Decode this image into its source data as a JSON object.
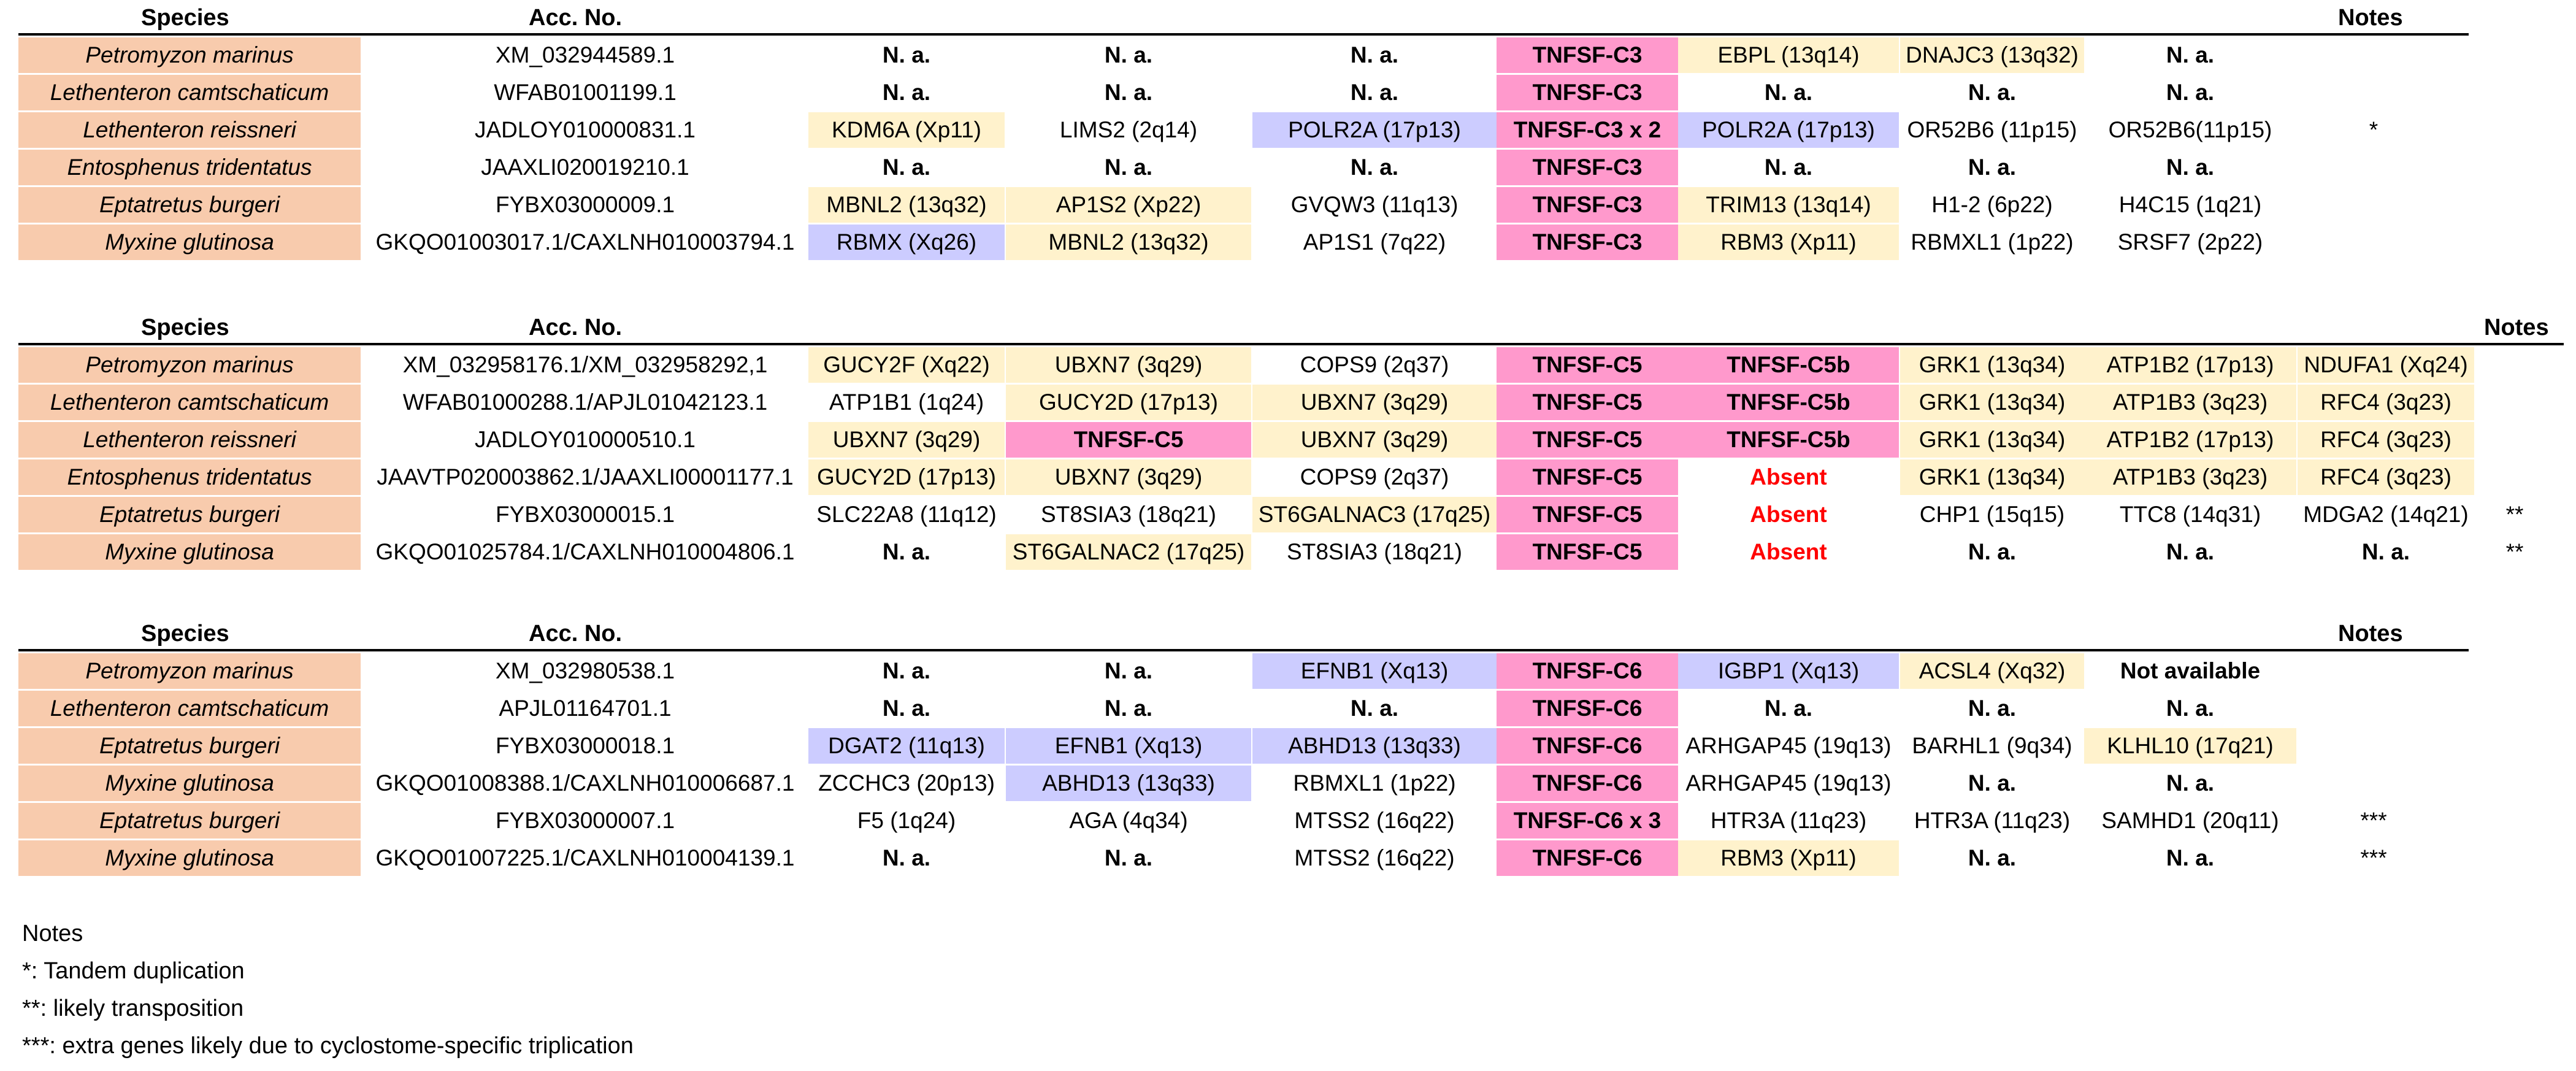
{
  "headers": {
    "species": "Species",
    "acc": "Acc. No.",
    "notes": "Notes"
  },
  "tables": [
    {
      "rows": [
        {
          "species": "Petromyzon marinus",
          "acc": "XM_032944589.1",
          "note": "",
          "cells": [
            {
              "t": "N. a.",
              "s": "bold"
            },
            {
              "t": "N. a.",
              "s": "bold"
            },
            {
              "t": "N. a.",
              "s": "bold"
            },
            {
              "t": "TNFSF-C3",
              "s": "pink"
            },
            {
              "t": "EBPL (13q14)",
              "s": "yellow"
            },
            {
              "t": "DNAJC3 (13q32)",
              "s": "yellow"
            },
            {
              "t": "N. a.",
              "s": "bold"
            }
          ]
        },
        {
          "species": "Lethenteron camtschaticum",
          "acc": "WFAB01001199.1",
          "note": "",
          "cells": [
            {
              "t": "N. a.",
              "s": "bold"
            },
            {
              "t": "N. a.",
              "s": "bold"
            },
            {
              "t": "N. a.",
              "s": "bold"
            },
            {
              "t": "TNFSF-C3",
              "s": "pink"
            },
            {
              "t": "N. a.",
              "s": "bold"
            },
            {
              "t": "N. a.",
              "s": "bold"
            },
            {
              "t": "N. a.",
              "s": "bold"
            }
          ]
        },
        {
          "species": "Lethenteron reissneri",
          "acc": "JADLOY010000831.1",
          "note": "*",
          "cells": [
            {
              "t": "KDM6A (Xp11)",
              "s": "yellow"
            },
            {
              "t": "LIMS2 (2q14)",
              "s": "none"
            },
            {
              "t": "POLR2A (17p13)",
              "s": "blue"
            },
            {
              "t": "TNFSF-C3 x 2",
              "s": "pink"
            },
            {
              "t": "POLR2A (17p13)",
              "s": "blue"
            },
            {
              "t": "OR52B6 (11p15)",
              "s": "none"
            },
            {
              "t": "OR52B6(11p15)",
              "s": "none"
            }
          ]
        },
        {
          "species": "Entosphenus tridentatus",
          "acc": "JAAXLI020019210.1",
          "note": "",
          "cells": [
            {
              "t": "N. a.",
              "s": "bold"
            },
            {
              "t": "N. a.",
              "s": "bold"
            },
            {
              "t": "N. a.",
              "s": "bold"
            },
            {
              "t": "TNFSF-C3",
              "s": "pink"
            },
            {
              "t": "N. a.",
              "s": "bold"
            },
            {
              "t": "N. a.",
              "s": "bold"
            },
            {
              "t": "N. a.",
              "s": "bold"
            }
          ]
        },
        {
          "species": "Eptatretus burgeri",
          "acc": "FYBX03000009.1",
          "note": "",
          "cells": [
            {
              "t": "MBNL2 (13q32)",
              "s": "yellow"
            },
            {
              "t": "AP1S2 (Xp22)",
              "s": "yellow"
            },
            {
              "t": "GVQW3 (11q13)",
              "s": "none"
            },
            {
              "t": "TNFSF-C3",
              "s": "pink"
            },
            {
              "t": "TRIM13 (13q14)",
              "s": "yellow"
            },
            {
              "t": "H1-2 (6p22)",
              "s": "none"
            },
            {
              "t": "H4C15 (1q21)",
              "s": "none"
            }
          ]
        },
        {
          "species": "Myxine glutinosa",
          "acc": "GKQO01003017.1/CAXLNH010003794.1",
          "note": "",
          "cells": [
            {
              "t": "RBMX (Xq26)",
              "s": "blue"
            },
            {
              "t": "MBNL2 (13q32)",
              "s": "yellow"
            },
            {
              "t": "AP1S1 (7q22)",
              "s": "none"
            },
            {
              "t": "TNFSF-C3",
              "s": "pink"
            },
            {
              "t": "RBM3 (Xp11)",
              "s": "yellow"
            },
            {
              "t": "RBMXL1 (1p22)",
              "s": "none"
            },
            {
              "t": "SRSF7 (2p22)",
              "s": "none"
            }
          ]
        }
      ]
    },
    {
      "rows": [
        {
          "species": "Petromyzon marinus",
          "acc": "XM_032958176.1/XM_032958292,1",
          "note": "",
          "cells": [
            {
              "t": "GUCY2F (Xq22)",
              "s": "yellow"
            },
            {
              "t": "UBXN7 (3q29)",
              "s": "yellow"
            },
            {
              "t": "COPS9 (2q37)",
              "s": "none"
            },
            {
              "t": "TNFSF-C5",
              "s": "pink"
            },
            {
              "t": "TNFSF-C5b",
              "s": "pink"
            },
            {
              "t": "GRK1 (13q34)",
              "s": "yellow"
            },
            {
              "t": "ATP1B2 (17p13)",
              "s": "yellow"
            },
            {
              "t": "NDUFA1 (Xq24)",
              "s": "yellow"
            }
          ]
        },
        {
          "species": "Lethenteron camtschaticum",
          "acc": "WFAB01000288.1/APJL01042123.1",
          "note": "",
          "cells": [
            {
              "t": "ATP1B1 (1q24)",
              "s": "none"
            },
            {
              "t": "GUCY2D (17p13)",
              "s": "yellow"
            },
            {
              "t": "UBXN7 (3q29)",
              "s": "yellow"
            },
            {
              "t": "TNFSF-C5",
              "s": "pink"
            },
            {
              "t": "TNFSF-C5b",
              "s": "pink"
            },
            {
              "t": "GRK1 (13q34)",
              "s": "yellow"
            },
            {
              "t": "ATP1B3 (3q23)",
              "s": "yellow"
            },
            {
              "t": "RFC4 (3q23)",
              "s": "yellow"
            }
          ]
        },
        {
          "species": "Lethenteron reissneri",
          "acc": "JADLOY010000510.1",
          "note": "",
          "cells": [
            {
              "t": "UBXN7 (3q29)",
              "s": "yellow"
            },
            {
              "t": "TNFSF-C5",
              "s": "pink"
            },
            {
              "t": "UBXN7 (3q29)",
              "s": "yellow"
            },
            {
              "t": "TNFSF-C5",
              "s": "pink"
            },
            {
              "t": "TNFSF-C5b",
              "s": "pink"
            },
            {
              "t": "GRK1 (13q34)",
              "s": "yellow"
            },
            {
              "t": "ATP1B2 (17p13)",
              "s": "yellow"
            },
            {
              "t": "RFC4 (3q23)",
              "s": "yellow"
            }
          ]
        },
        {
          "species": "Entosphenus tridentatus",
          "acc": "JAAVTP020003862.1/JAAXLI00001177.1",
          "note": "",
          "cells": [
            {
              "t": "GUCY2D (17p13)",
              "s": "yellow"
            },
            {
              "t": "UBXN7 (3q29)",
              "s": "yellow"
            },
            {
              "t": "COPS9 (2q37)",
              "s": "none"
            },
            {
              "t": "TNFSF-C5",
              "s": "pink"
            },
            {
              "t": "Absent",
              "s": "red"
            },
            {
              "t": "GRK1 (13q34)",
              "s": "yellow"
            },
            {
              "t": "ATP1B3 (3q23)",
              "s": "yellow"
            },
            {
              "t": "RFC4 (3q23)",
              "s": "yellow"
            }
          ]
        },
        {
          "species": "Eptatretus burgeri",
          "acc": "FYBX03000015.1",
          "note": "**",
          "cells": [
            {
              "t": "SLC22A8 (11q12)",
              "s": "none"
            },
            {
              "t": "ST8SIA3 (18q21)",
              "s": "none"
            },
            {
              "t": "ST6GALNAC3 (17q25)",
              "s": "yellow"
            },
            {
              "t": "TNFSF-C5",
              "s": "pink"
            },
            {
              "t": "Absent",
              "s": "red"
            },
            {
              "t": "CHP1 (15q15)",
              "s": "none"
            },
            {
              "t": "TTC8 (14q31)",
              "s": "none"
            },
            {
              "t": "MDGA2 (14q21)",
              "s": "none"
            }
          ]
        },
        {
          "species": "Myxine glutinosa",
          "acc": "GKQO01025784.1/CAXLNH010004806.1",
          "note": "**",
          "cells": [
            {
              "t": "N. a.",
              "s": "bold"
            },
            {
              "t": "ST6GALNAC2 (17q25)",
              "s": "yellow"
            },
            {
              "t": "ST8SIA3 (18q21)",
              "s": "none"
            },
            {
              "t": "TNFSF-C5",
              "s": "pink"
            },
            {
              "t": "Absent",
              "s": "red"
            },
            {
              "t": "N. a.",
              "s": "bold"
            },
            {
              "t": "N. a.",
              "s": "bold"
            },
            {
              "t": "N. a.",
              "s": "bold"
            }
          ]
        }
      ]
    },
    {
      "rows": [
        {
          "species": "Petromyzon marinus",
          "acc": "XM_032980538.1",
          "note": "",
          "cells": [
            {
              "t": "N. a.",
              "s": "bold"
            },
            {
              "t": "N. a.",
              "s": "bold"
            },
            {
              "t": "EFNB1 (Xq13)",
              "s": "blue"
            },
            {
              "t": "TNFSF-C6",
              "s": "pink"
            },
            {
              "t": "IGBP1 (Xq13)",
              "s": "blue"
            },
            {
              "t": "ACSL4 (Xq32)",
              "s": "yellow"
            },
            {
              "t": "Not available",
              "s": "bold"
            }
          ]
        },
        {
          "species": "Lethenteron camtschaticum",
          "acc": "APJL01164701.1",
          "note": "",
          "cells": [
            {
              "t": "N. a.",
              "s": "bold"
            },
            {
              "t": "N. a.",
              "s": "bold"
            },
            {
              "t": "N. a.",
              "s": "bold"
            },
            {
              "t": "TNFSF-C6",
              "s": "pink"
            },
            {
              "t": "N. a.",
              "s": "bold"
            },
            {
              "t": "N. a.",
              "s": "bold"
            },
            {
              "t": "N. a.",
              "s": "bold"
            }
          ]
        },
        {
          "species": "Eptatretus burgeri",
          "acc": "FYBX03000018.1",
          "note": "",
          "cells": [
            {
              "t": "DGAT2 (11q13)",
              "s": "blue"
            },
            {
              "t": "EFNB1 (Xq13)",
              "s": "blue"
            },
            {
              "t": "ABHD13 (13q33)",
              "s": "blue"
            },
            {
              "t": "TNFSF-C6",
              "s": "pink"
            },
            {
              "t": "ARHGAP45 (19q13)",
              "s": "none"
            },
            {
              "t": "BARHL1 (9q34)",
              "s": "none"
            },
            {
              "t": "KLHL10 (17q21)",
              "s": "yellow"
            }
          ]
        },
        {
          "species": "Myxine glutinosa",
          "acc": "GKQO01008388.1/CAXLNH010006687.1",
          "note": "",
          "cells": [
            {
              "t": "ZCCHC3 (20p13)",
              "s": "none"
            },
            {
              "t": "ABHD13 (13q33)",
              "s": "blue"
            },
            {
              "t": "RBMXL1 (1p22)",
              "s": "none"
            },
            {
              "t": "TNFSF-C6",
              "s": "pink"
            },
            {
              "t": "ARHGAP45 (19q13)",
              "s": "none"
            },
            {
              "t": "N. a.",
              "s": "bold"
            },
            {
              "t": "N. a.",
              "s": "bold"
            }
          ]
        },
        {
          "species": "Eptatretus burgeri",
          "acc": "FYBX03000007.1",
          "note": "***",
          "cells": [
            {
              "t": "F5 (1q24)",
              "s": "none"
            },
            {
              "t": "AGA (4q34)",
              "s": "none"
            },
            {
              "t": "MTSS2 (16q22)",
              "s": "none"
            },
            {
              "t": "TNFSF-C6 x 3",
              "s": "pink"
            },
            {
              "t": "HTR3A (11q23)",
              "s": "none"
            },
            {
              "t": "HTR3A (11q23)",
              "s": "none"
            },
            {
              "t": "SAMHD1 (20q11)",
              "s": "none"
            }
          ]
        },
        {
          "species": "Myxine glutinosa",
          "acc": "GKQO01007225.1/CAXLNH010004139.1",
          "note": "***",
          "cells": [
            {
              "t": "N. a.",
              "s": "bold"
            },
            {
              "t": "N. a.",
              "s": "bold"
            },
            {
              "t": "MTSS2 (16q22)",
              "s": "none"
            },
            {
              "t": "TNFSF-C6",
              "s": "pink"
            },
            {
              "t": "RBM3 (Xp11)",
              "s": "yellow"
            },
            {
              "t": "N. a.",
              "s": "bold"
            },
            {
              "t": "N. a.",
              "s": "bold"
            }
          ]
        }
      ]
    }
  ],
  "legend": {
    "title": "Notes",
    "lines": [
      "*: Tandem duplication",
      "**: likely transposition",
      "***: extra genes likely due to cyclostome-specific triplication"
    ]
  }
}
